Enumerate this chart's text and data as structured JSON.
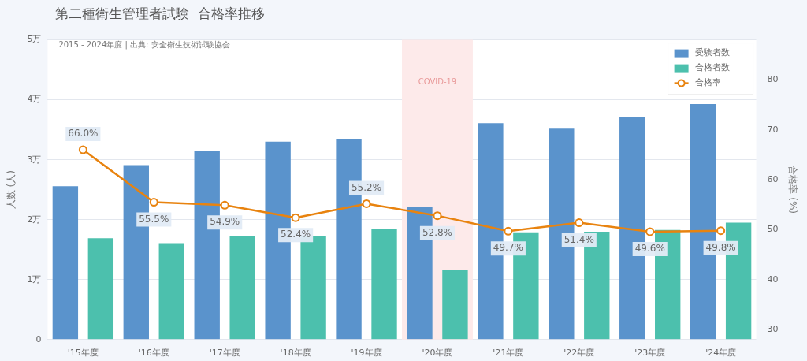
{
  "chart_data": {
    "type": "bar",
    "title": "第二種衛生管理者試験  合格率推移",
    "subtitle": "2015 - 2024年度 | 出典: 安全衛生技術試験協会",
    "categories": [
      "'15年度",
      "'16年度",
      "'17年度",
      "'18年度",
      "'19年度",
      "'20年度",
      "'21年度",
      "'22年度",
      "'23年度",
      "'24年度"
    ],
    "series": [
      {
        "name": "受験者数",
        "color": "#5a93cc",
        "values": [
          2.56,
          2.91,
          3.14,
          3.3,
          3.35,
          2.22,
          3.61,
          3.52,
          3.71,
          3.93
        ]
      },
      {
        "name": "合格者数",
        "color": "#4cc0ad",
        "values": [
          1.69,
          1.61,
          1.73,
          1.73,
          1.84,
          1.16,
          1.79,
          1.8,
          1.83,
          1.95
        ]
      },
      {
        "name": "合格率",
        "type": "line",
        "axis": "y2",
        "color": "#e8830f",
        "marker": "circle",
        "values": [
          66.0,
          55.5,
          54.9,
          52.4,
          55.2,
          52.8,
          49.7,
          51.4,
          49.6,
          49.8
        ],
        "value_labels": [
          "66.0%",
          "55.5%",
          "54.9%",
          "52.4%",
          "55.2%",
          "52.8%",
          "49.7%",
          "51.4%",
          "49.6%",
          "49.8%"
        ]
      }
    ],
    "ylabel": "人数 (人)",
    "y2label": "合格率 (%)",
    "ylim": [
      0,
      5
    ],
    "yticks": [
      {
        "value": 0,
        "label": "0"
      },
      {
        "value": 1,
        "label": "1万"
      },
      {
        "value": 2,
        "label": "2万"
      },
      {
        "value": 3,
        "label": "3万"
      },
      {
        "value": 4,
        "label": "4万"
      },
      {
        "value": 5,
        "label": "5万"
      }
    ],
    "y2lim": [
      28,
      88
    ],
    "y2ticks": [
      30,
      40,
      50,
      60,
      70,
      80
    ],
    "bands": [
      {
        "axis": "x",
        "from": "'20年度",
        "to": "'20年度",
        "label": "COVID-19",
        "color": "#fdeaea"
      }
    ],
    "grid": "y",
    "legend": "top right"
  }
}
